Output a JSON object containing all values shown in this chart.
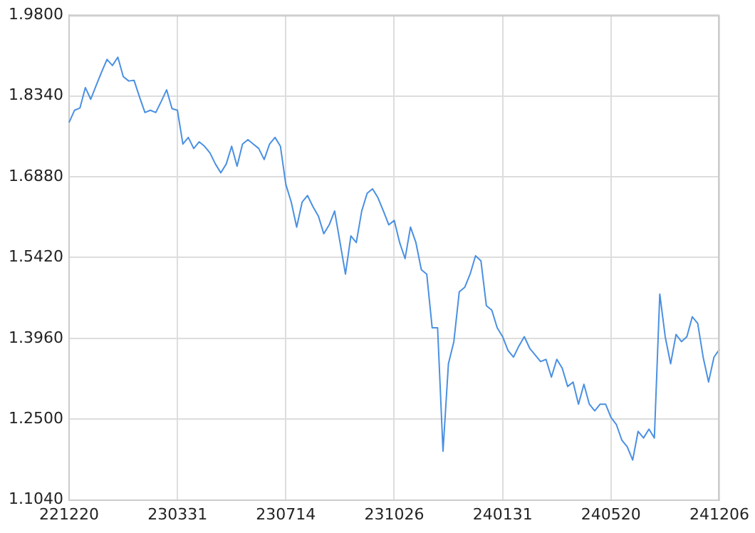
{
  "chart_data": {
    "type": "line",
    "categories": [
      "221220",
      null,
      null,
      null,
      null,
      null,
      null,
      null,
      null,
      null,
      null,
      null,
      null,
      null,
      null,
      null,
      null,
      null,
      null,
      null,
      "230331",
      null,
      null,
      null,
      null,
      null,
      null,
      null,
      null,
      null,
      null,
      null,
      null,
      null,
      null,
      null,
      null,
      null,
      null,
      null,
      "230714",
      null,
      null,
      null,
      null,
      null,
      null,
      null,
      null,
      null,
      null,
      null,
      null,
      null,
      null,
      null,
      null,
      null,
      null,
      null,
      "231026",
      null,
      null,
      null,
      null,
      null,
      null,
      null,
      null,
      null,
      null,
      null,
      null,
      null,
      null,
      null,
      null,
      null,
      null,
      null,
      "240131",
      null,
      null,
      null,
      null,
      null,
      null,
      null,
      null,
      null,
      null,
      null,
      null,
      null,
      null,
      null,
      null,
      null,
      null,
      null,
      "240520",
      null,
      null,
      null,
      null,
      null,
      null,
      null,
      null,
      null,
      null,
      null,
      null,
      null,
      null,
      null,
      null,
      null,
      null,
      null,
      "241206"
    ],
    "series": [
      {
        "color": "#4a90e2",
        "values": [
          1.786,
          1.808,
          1.812,
          1.849,
          1.828,
          1.853,
          1.877,
          1.9,
          1.889,
          1.904,
          1.869,
          1.861,
          1.862,
          1.832,
          1.804,
          1.808,
          1.804,
          1.824,
          1.845,
          1.811,
          1.808,
          1.747,
          1.759,
          1.739,
          1.751,
          1.743,
          1.731,
          1.711,
          1.695,
          1.711,
          1.743,
          1.707,
          1.747,
          1.755,
          1.747,
          1.739,
          1.719,
          1.747,
          1.759,
          1.743,
          1.674,
          1.642,
          1.597,
          1.642,
          1.654,
          1.634,
          1.617,
          1.585,
          1.601,
          1.626,
          1.569,
          1.512,
          1.581,
          1.569,
          1.626,
          1.658,
          1.666,
          1.65,
          1.626,
          1.601,
          1.609,
          1.569,
          1.54,
          1.597,
          1.569,
          1.52,
          1.512,
          1.415,
          1.415,
          1.192,
          1.35,
          1.39,
          1.48,
          1.488,
          1.512,
          1.545,
          1.536,
          1.455,
          1.447,
          1.415,
          1.399,
          1.374,
          1.362,
          1.382,
          1.399,
          1.378,
          1.366,
          1.354,
          1.358,
          1.326,
          1.358,
          1.342,
          1.309,
          1.317,
          1.277,
          1.313,
          1.277,
          1.265,
          1.277,
          1.277,
          1.253,
          1.24,
          1.212,
          1.2,
          1.176,
          1.228,
          1.216,
          1.232,
          1.216,
          1.476,
          1.399,
          1.35,
          1.403,
          1.39,
          1.399,
          1.435,
          1.423,
          1.362,
          1.317,
          1.362,
          1.376
        ]
      }
    ],
    "ylim": [
      1.104,
      1.98
    ],
    "yticks": [
      {
        "value": 1.104,
        "label": "1.1040"
      },
      {
        "value": 1.25,
        "label": "1.2500"
      },
      {
        "value": 1.396,
        "label": "1.3960"
      },
      {
        "value": 1.542,
        "label": "1.5420"
      },
      {
        "value": 1.688,
        "label": "1.6880"
      },
      {
        "value": 1.834,
        "label": "1.8340"
      },
      {
        "value": 1.98,
        "label": "1.9800"
      }
    ],
    "grid": true,
    "legend": false,
    "marker": "none",
    "line_style": "solid"
  }
}
